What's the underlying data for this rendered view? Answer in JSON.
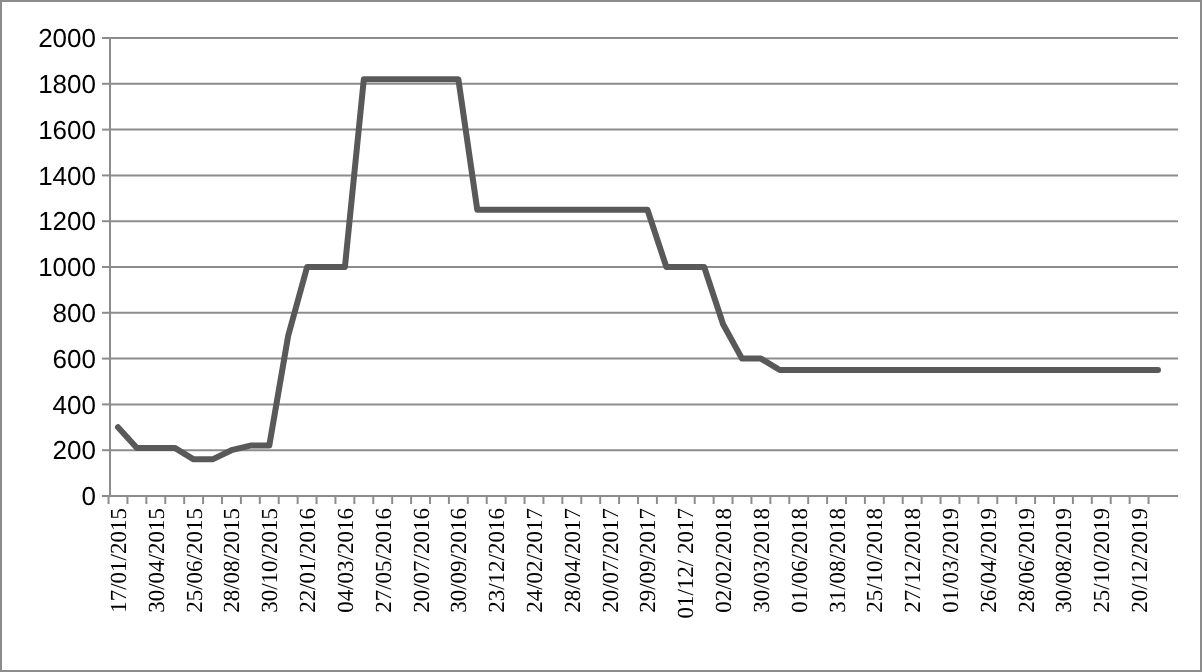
{
  "chart_data": {
    "type": "line",
    "categories": [
      "17/01/2015",
      null,
      "30/04/2015",
      null,
      "25/06/2015",
      null,
      "28/08/2015",
      null,
      "30/10/2015",
      null,
      "22/01/2016",
      null,
      "04/03/2016",
      null,
      "27/05/2016",
      null,
      "20/07/2016",
      null,
      "30/09/2016",
      null,
      "23/12/2016",
      null,
      "24/02/2017",
      null,
      "28/04/2017",
      null,
      "20/07/2017",
      null,
      "29/09/2017",
      null,
      "01/12/ 2017",
      null,
      "02/02/2018",
      null,
      "30/03/2018",
      null,
      "01/06/2018",
      null,
      "31/08/2018",
      null,
      "25/10/2018",
      null,
      "27/12/2018",
      null,
      "01/03/2019",
      null,
      "26/04/2019",
      null,
      "28/06/2019",
      null,
      "30/08/2019",
      null,
      "25/10/2019",
      null,
      "20/12/2019",
      null
    ],
    "series": [
      {
        "color": "#595959",
        "values": [
          300,
          210,
          210,
          210,
          160,
          160,
          200,
          220,
          220,
          700,
          1000,
          1000,
          1000,
          1820,
          1820,
          1820,
          1820,
          1820,
          1820,
          1250,
          1250,
          1250,
          1250,
          1250,
          1250,
          1250,
          1250,
          1250,
          1250,
          1000,
          1000,
          1000,
          750,
          600,
          600,
          550,
          550,
          550,
          550,
          550,
          550,
          550,
          550,
          550,
          550,
          550,
          550,
          550,
          550,
          550,
          550,
          550,
          550,
          550,
          550,
          550
        ]
      }
    ],
    "ylim": [
      0,
      2000
    ],
    "yticks": [
      0,
      200,
      400,
      600,
      800,
      1000,
      1200,
      1400,
      1600,
      1800,
      2000
    ],
    "grid": "y",
    "marker": "none",
    "line_style": "solid"
  }
}
